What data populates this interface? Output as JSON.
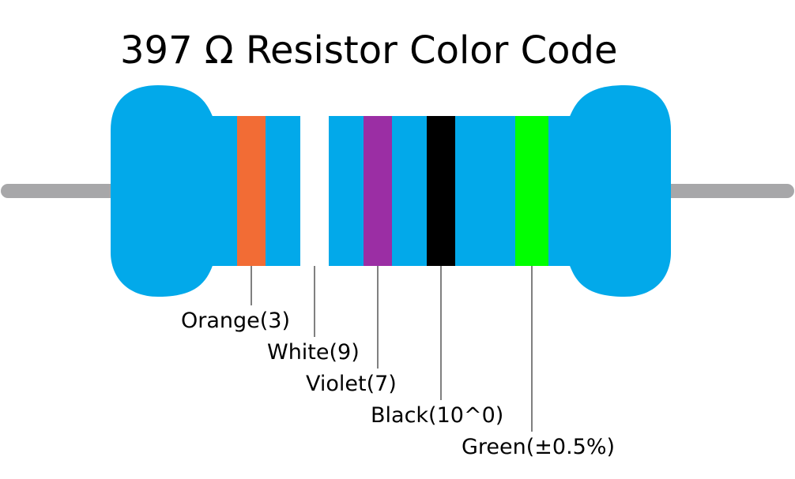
{
  "title": "397 Ω Resistor Color Code",
  "bands": [
    {
      "label": "Orange(3)",
      "color": "#f26c35"
    },
    {
      "label": "White(9)",
      "color": "#ffffff"
    },
    {
      "label": "Violet(7)",
      "color": "#9b2ea4"
    },
    {
      "label": "Black(10^0)",
      "color": "#000000"
    },
    {
      "label": "Green(±0.5%)",
      "color": "#00ff00"
    }
  ]
}
